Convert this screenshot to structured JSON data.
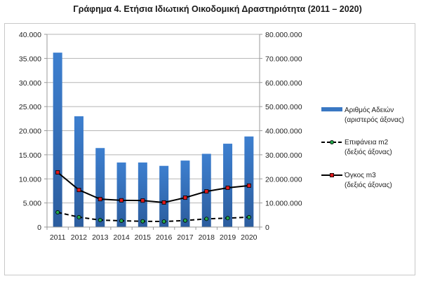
{
  "title": "Γράφημα 4. Ετήσια Ιδιωτική Οικοδομική Δραστηριότητα (2011 – 2020)",
  "chart_data": {
    "type": "bar",
    "title": "Γράφημα 4. Ετήσια Ιδιωτική Οικοδομική Δραστηριότητα (2011 – 2020)",
    "categories": [
      "2011",
      "2012",
      "2013",
      "2014",
      "2015",
      "2016",
      "2017",
      "2018",
      "2019",
      "2020"
    ],
    "left_axis": {
      "ylim": [
        0,
        40000
      ],
      "ticks": [
        0,
        5000,
        10000,
        15000,
        20000,
        25000,
        30000,
        35000,
        40000
      ],
      "tick_labels": [
        "0",
        "5.000",
        "10.000",
        "15.000",
        "20.000",
        "25.000",
        "30.000",
        "35.000",
        "40.000"
      ]
    },
    "right_axis": {
      "ylim": [
        0,
        80000000
      ],
      "ticks": [
        0,
        10000000,
        20000000,
        30000000,
        40000000,
        50000000,
        60000000,
        70000000,
        80000000
      ],
      "tick_labels": [
        "0",
        "10.000.000",
        "20.000.000",
        "30.000.000",
        "40.000.000",
        "50.000.000",
        "60.000.000",
        "70.000.000",
        "80.000.000"
      ]
    },
    "grid": true,
    "legend_position": "right",
    "series": [
      {
        "name": "Αριθμός Αδειών",
        "name_line2": "(αριστερός άξονας)",
        "type": "bar",
        "axis": "left",
        "color": "#3a78c3",
        "values": [
          36200,
          23000,
          16400,
          13400,
          13400,
          12700,
          13800,
          15200,
          17300,
          18800
        ]
      },
      {
        "name": "Επιφάνεια m2",
        "name_line2": "(δεξιός άξονας)",
        "type": "line",
        "style": "dashed",
        "axis": "right",
        "color": "#000000",
        "marker_color": "#22a84a",
        "values": [
          6100000,
          4100000,
          2900000,
          2600000,
          2400000,
          2300000,
          2700000,
          3400000,
          3700000,
          4100000
        ]
      },
      {
        "name": "Όγκος m3",
        "name_line2": "(δεξιός άξονας)",
        "type": "line",
        "style": "solid",
        "axis": "right",
        "color": "#000000",
        "marker_color": "#e0191c",
        "values": [
          22700000,
          15400000,
          11600000,
          11100000,
          11000000,
          10200000,
          12200000,
          14800000,
          16300000,
          17200000
        ]
      }
    ]
  }
}
